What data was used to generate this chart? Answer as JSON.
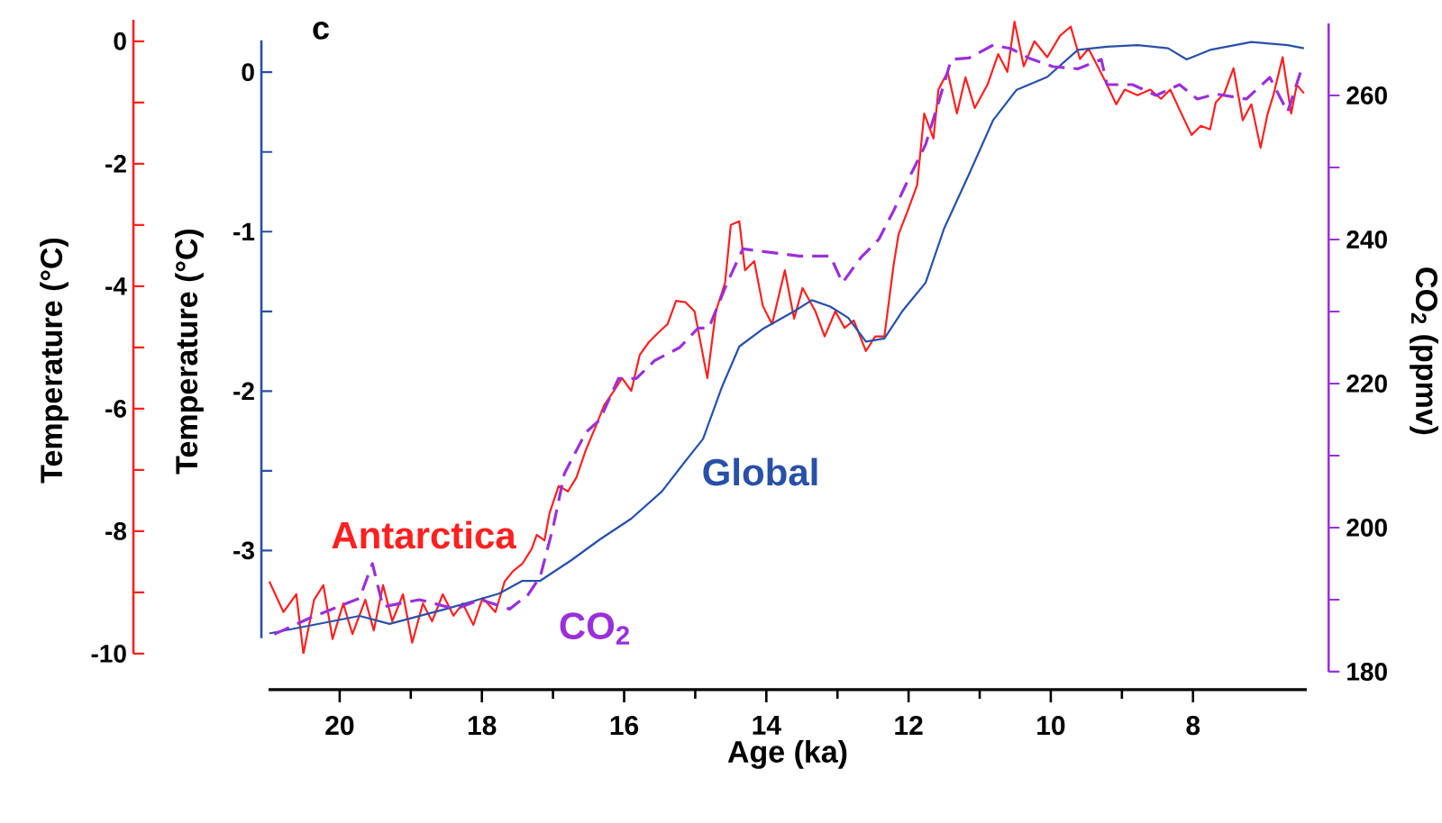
{
  "chart_data": {
    "type": "line",
    "xlabel": "Age (ka)",
    "ylabel": "Temperature (°C)",
    "y2label": "CO$_{2}$ (ppmv)",
    "y3label": "Temperature (°C)",
    "annotations": [
      "c"
    ],
    "xlim": [
      21,
      6.4
    ],
    "xticks": [
      20,
      18,
      16,
      14,
      12,
      10,
      8
    ],
    "ylim": [
      -3.55,
      0.2
    ],
    "yticks": [
      -3,
      -2,
      -1,
      0
    ],
    "y2lim": [
      180,
      270
    ],
    "y2ticks": [
      180,
      200,
      220,
      240,
      260
    ],
    "y3lim": [
      -10,
      0.35
    ],
    "y3ticks": [
      -10,
      -8,
      -6,
      -4,
      -2,
      0
    ],
    "series": [
      {
        "name": "Antarctica",
        "color": "#ff2020",
        "axis": "y3",
        "line_style": "solid",
        "x": [
          20.99,
          20.79,
          20.61,
          20.51,
          20.36,
          20.23,
          20.1,
          19.95,
          19.82,
          19.64,
          19.52,
          19.39,
          19.26,
          19.11,
          18.98,
          18.83,
          18.7,
          18.55,
          18.4,
          18.27,
          18.12,
          17.99,
          17.81,
          17.68,
          17.56,
          17.43,
          17.3,
          17.23,
          17.12,
          17.05,
          16.92,
          16.79,
          16.67,
          16.54,
          16.41,
          16.28,
          16.16,
          16.03,
          15.9,
          15.78,
          15.65,
          15.52,
          15.39,
          15.27,
          15.14,
          15.01,
          14.83,
          14.71,
          14.58,
          14.5,
          14.38,
          14.3,
          14.17,
          14.05,
          13.92,
          13.74,
          13.61,
          13.49,
          13.31,
          13.18,
          13.03,
          12.9,
          12.77,
          12.6,
          12.47,
          12.34,
          12.21,
          12.14,
          12.01,
          11.88,
          11.78,
          11.65,
          11.58,
          11.45,
          11.32,
          11.2,
          11.07,
          10.89,
          10.74,
          10.61,
          10.51,
          10.38,
          10.23,
          10.05,
          9.87,
          9.72,
          9.59,
          9.47,
          9.34,
          9.21,
          9.08,
          8.96,
          8.78,
          8.6,
          8.45,
          8.32,
          8.14,
          8.02,
          7.89,
          7.76,
          7.68,
          7.56,
          7.43,
          7.3,
          7.18,
          7.05,
          6.95,
          6.87,
          6.74,
          6.62,
          6.54,
          6.44
        ],
        "values": [
          -8.82,
          -9.32,
          -9.03,
          -10.0,
          -9.12,
          -8.88,
          -9.76,
          -9.18,
          -9.68,
          -9.12,
          -9.62,
          -8.88,
          -9.47,
          -9.03,
          -9.82,
          -9.18,
          -9.47,
          -9.03,
          -9.38,
          -9.18,
          -9.53,
          -9.09,
          -9.32,
          -8.82,
          -8.65,
          -8.53,
          -8.29,
          -8.06,
          -8.15,
          -7.71,
          -7.26,
          -7.35,
          -7.12,
          -6.68,
          -6.32,
          -5.94,
          -5.74,
          -5.5,
          -5.71,
          -5.12,
          -4.91,
          -4.76,
          -4.62,
          -4.24,
          -4.26,
          -4.41,
          -5.5,
          -4.41,
          -3.94,
          -3.0,
          -2.94,
          -3.74,
          -3.59,
          -4.32,
          -4.62,
          -3.74,
          -4.53,
          -4.03,
          -4.41,
          -4.82,
          -4.41,
          -4.68,
          -4.56,
          -5.06,
          -4.82,
          -4.82,
          -3.65,
          -3.15,
          -2.76,
          -2.35,
          -1.18,
          -1.59,
          -0.79,
          -0.5,
          -1.18,
          -0.59,
          -1.09,
          -0.71,
          -0.21,
          -0.5,
          0.32,
          -0.41,
          0.0,
          -0.26,
          0.09,
          0.24,
          -0.29,
          -0.12,
          -0.41,
          -0.71,
          -1.03,
          -0.79,
          -0.88,
          -0.79,
          -0.94,
          -0.79,
          -1.24,
          -1.53,
          -1.38,
          -1.44,
          -1.0,
          -0.85,
          -0.44,
          -1.29,
          -1.03,
          -1.74,
          -1.18,
          -0.88,
          -0.26,
          -1.18,
          -0.71,
          -0.85
        ]
      },
      {
        "name": "Global",
        "color": "#2850a8",
        "axis": "y",
        "line_style": "solid",
        "x": [
          20.99,
          19.72,
          19.3,
          18.45,
          17.76,
          17.43,
          17.18,
          16.74,
          16.34,
          15.9,
          15.47,
          15.14,
          14.89,
          14.63,
          14.38,
          14.05,
          13.61,
          13.36,
          13.1,
          12.85,
          12.6,
          12.34,
          12.09,
          11.76,
          11.5,
          11.15,
          10.81,
          10.48,
          10.05,
          9.62,
          9.21,
          8.78,
          8.35,
          8.09,
          7.76,
          7.18,
          6.67,
          6.44
        ],
        "values": [
          -3.52,
          -3.41,
          -3.46,
          -3.36,
          -3.27,
          -3.19,
          -3.19,
          -3.06,
          -2.93,
          -2.8,
          -2.63,
          -2.44,
          -2.3,
          -1.98,
          -1.72,
          -1.61,
          -1.5,
          -1.43,
          -1.47,
          -1.54,
          -1.69,
          -1.67,
          -1.5,
          -1.32,
          -0.98,
          -0.64,
          -0.3,
          -0.11,
          -0.03,
          0.14,
          0.16,
          0.17,
          0.15,
          0.08,
          0.14,
          0.19,
          0.17,
          0.15
        ]
      },
      {
        "name": "CO$_{2}$",
        "color": "#9a30d8",
        "axis": "y2",
        "line_style": "dashed",
        "x": [
          20.92,
          20.41,
          19.72,
          19.54,
          19.39,
          18.88,
          18.37,
          18.02,
          17.61,
          17.35,
          17.18,
          17.0,
          16.84,
          16.54,
          16.34,
          16.08,
          15.83,
          15.57,
          15.22,
          14.96,
          14.81,
          14.55,
          14.33,
          13.94,
          13.54,
          13.1,
          12.93,
          12.67,
          12.42,
          12.21,
          12.01,
          11.76,
          11.58,
          11.4,
          11.15,
          10.81,
          10.56,
          10.31,
          9.97,
          9.62,
          9.29,
          9.21,
          8.85,
          8.52,
          8.19,
          7.94,
          7.68,
          7.25,
          6.92,
          6.67,
          6.49
        ],
        "values": [
          185.2,
          187.5,
          190.2,
          195,
          189,
          190,
          188.7,
          190,
          188.7,
          190.7,
          193.2,
          200,
          207.5,
          213.2,
          215,
          220.7,
          220.7,
          223.2,
          225,
          227.7,
          227.7,
          234,
          238.7,
          238.2,
          237.7,
          237.7,
          234,
          237.5,
          240,
          244,
          248.2,
          253.2,
          259,
          265,
          265.2,
          267,
          266.5,
          265.2,
          264,
          263.7,
          265,
          261.5,
          261.5,
          260,
          261.5,
          259.5,
          260.2,
          259.5,
          262.5,
          257.7,
          263.2
        ]
      }
    ]
  }
}
